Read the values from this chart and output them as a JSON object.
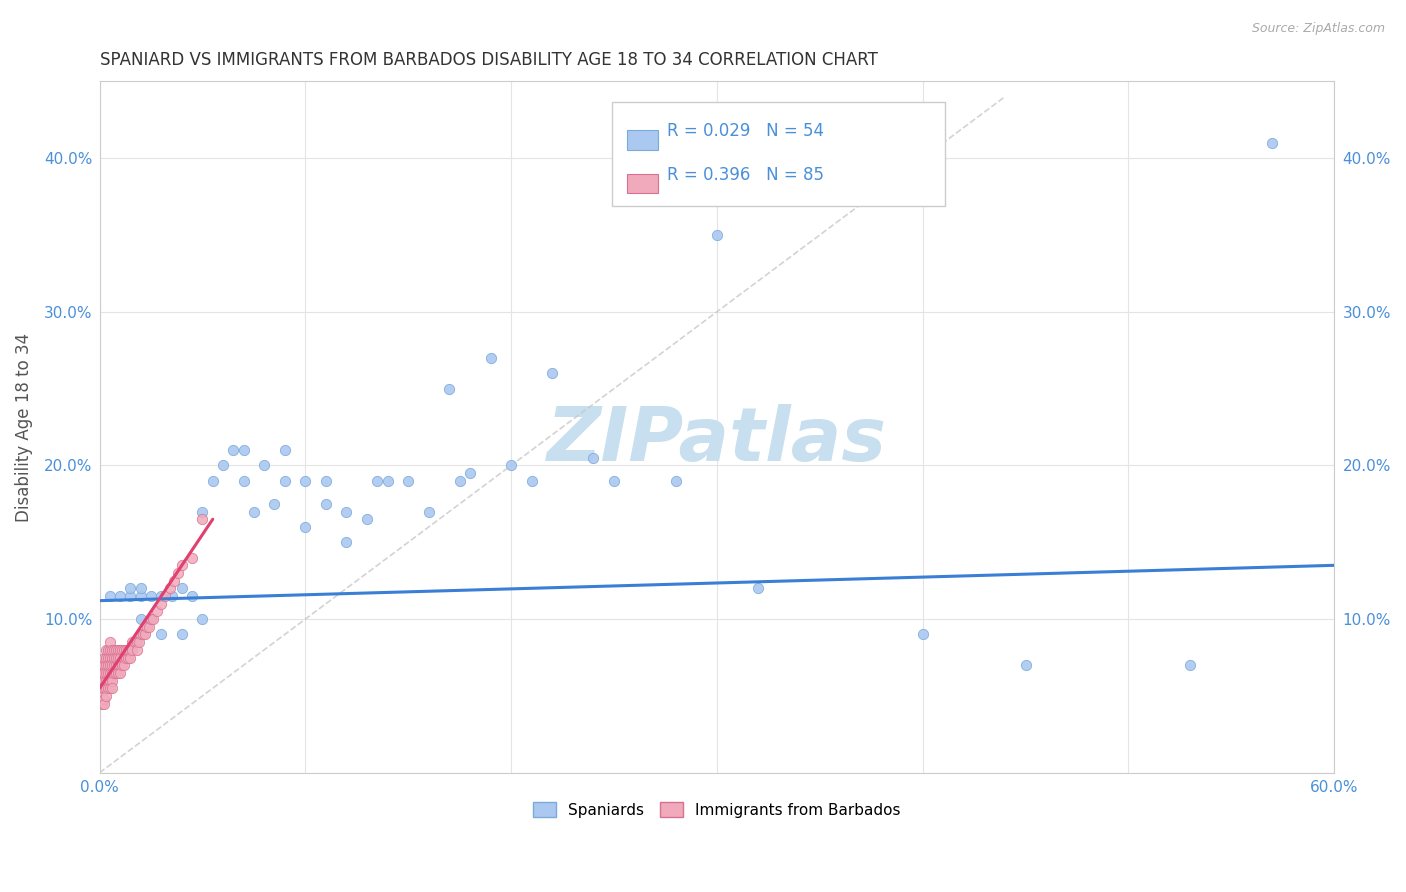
{
  "title": "SPANIARD VS IMMIGRANTS FROM BARBADOS DISABILITY AGE 18 TO 34 CORRELATION CHART",
  "source": "Source: ZipAtlas.com",
  "ylabel": "Disability Age 18 to 34",
  "xlim": [
    0.0,
    0.6
  ],
  "ylim": [
    0.0,
    0.45
  ],
  "xtick_vals": [
    0.0,
    0.1,
    0.2,
    0.3,
    0.4,
    0.5,
    0.6
  ],
  "xtick_labels": [
    "0.0%",
    "",
    "",
    "",
    "",
    "",
    "60.0%"
  ],
  "ytick_vals": [
    0.0,
    0.1,
    0.2,
    0.3,
    0.4
  ],
  "ytick_labels": [
    "",
    "10.0%",
    "20.0%",
    "30.0%",
    "40.0%"
  ],
  "spaniards_color": "#aac8f0",
  "spaniards_edge": "#7aaad8",
  "barbados_color": "#f0aabb",
  "barbados_edge": "#d87090",
  "trend_blue": "#3a7fd5",
  "trend_pink": "#e04070",
  "spaniards_R": 0.029,
  "spaniards_N": 54,
  "barbados_R": 0.396,
  "barbados_N": 85,
  "legend_label_1": "Spaniards",
  "legend_label_2": "Immigrants from Barbados",
  "watermark_color": "#c8dff0",
  "spaniards_x": [
    0.005,
    0.01,
    0.015,
    0.015,
    0.02,
    0.02,
    0.02,
    0.025,
    0.025,
    0.03,
    0.03,
    0.035,
    0.04,
    0.04,
    0.045,
    0.05,
    0.05,
    0.055,
    0.06,
    0.065,
    0.07,
    0.07,
    0.075,
    0.08,
    0.085,
    0.09,
    0.09,
    0.1,
    0.1,
    0.11,
    0.11,
    0.12,
    0.12,
    0.13,
    0.135,
    0.14,
    0.15,
    0.16,
    0.17,
    0.175,
    0.18,
    0.19,
    0.2,
    0.21,
    0.22,
    0.24,
    0.25,
    0.28,
    0.3,
    0.32,
    0.4,
    0.45,
    0.53,
    0.57
  ],
  "spaniards_y": [
    0.115,
    0.115,
    0.115,
    0.12,
    0.115,
    0.12,
    0.1,
    0.115,
    0.1,
    0.115,
    0.09,
    0.115,
    0.12,
    0.09,
    0.115,
    0.17,
    0.1,
    0.19,
    0.2,
    0.21,
    0.19,
    0.21,
    0.17,
    0.2,
    0.175,
    0.19,
    0.21,
    0.16,
    0.19,
    0.175,
    0.19,
    0.15,
    0.17,
    0.165,
    0.19,
    0.19,
    0.19,
    0.17,
    0.25,
    0.19,
    0.195,
    0.27,
    0.2,
    0.19,
    0.26,
    0.205,
    0.19,
    0.19,
    0.35,
    0.12,
    0.09,
    0.07,
    0.07,
    0.41
  ],
  "barbados_x": [
    0.001,
    0.001,
    0.001,
    0.002,
    0.002,
    0.002,
    0.002,
    0.002,
    0.002,
    0.002,
    0.003,
    0.003,
    0.003,
    0.003,
    0.003,
    0.003,
    0.003,
    0.004,
    0.004,
    0.004,
    0.004,
    0.004,
    0.004,
    0.005,
    0.005,
    0.005,
    0.005,
    0.005,
    0.005,
    0.005,
    0.006,
    0.006,
    0.006,
    0.006,
    0.006,
    0.006,
    0.007,
    0.007,
    0.007,
    0.007,
    0.008,
    0.008,
    0.008,
    0.008,
    0.009,
    0.009,
    0.009,
    0.009,
    0.01,
    0.01,
    0.01,
    0.01,
    0.011,
    0.011,
    0.012,
    0.012,
    0.012,
    0.013,
    0.013,
    0.014,
    0.014,
    0.015,
    0.015,
    0.016,
    0.016,
    0.017,
    0.018,
    0.018,
    0.019,
    0.02,
    0.021,
    0.022,
    0.023,
    0.024,
    0.025,
    0.026,
    0.028,
    0.03,
    0.032,
    0.034,
    0.036,
    0.038,
    0.04,
    0.045,
    0.05
  ],
  "barbados_y": [
    0.055,
    0.065,
    0.045,
    0.06,
    0.07,
    0.055,
    0.048,
    0.065,
    0.075,
    0.045,
    0.06,
    0.07,
    0.055,
    0.065,
    0.075,
    0.05,
    0.08,
    0.065,
    0.075,
    0.06,
    0.07,
    0.08,
    0.055,
    0.065,
    0.075,
    0.06,
    0.07,
    0.08,
    0.055,
    0.085,
    0.065,
    0.075,
    0.06,
    0.07,
    0.08,
    0.055,
    0.07,
    0.08,
    0.065,
    0.075,
    0.07,
    0.08,
    0.065,
    0.075,
    0.07,
    0.08,
    0.065,
    0.075,
    0.07,
    0.08,
    0.065,
    0.075,
    0.07,
    0.08,
    0.075,
    0.08,
    0.07,
    0.075,
    0.08,
    0.075,
    0.08,
    0.08,
    0.075,
    0.085,
    0.08,
    0.085,
    0.085,
    0.08,
    0.085,
    0.09,
    0.09,
    0.09,
    0.095,
    0.095,
    0.1,
    0.1,
    0.105,
    0.11,
    0.115,
    0.12,
    0.125,
    0.13,
    0.135,
    0.14,
    0.165
  ]
}
